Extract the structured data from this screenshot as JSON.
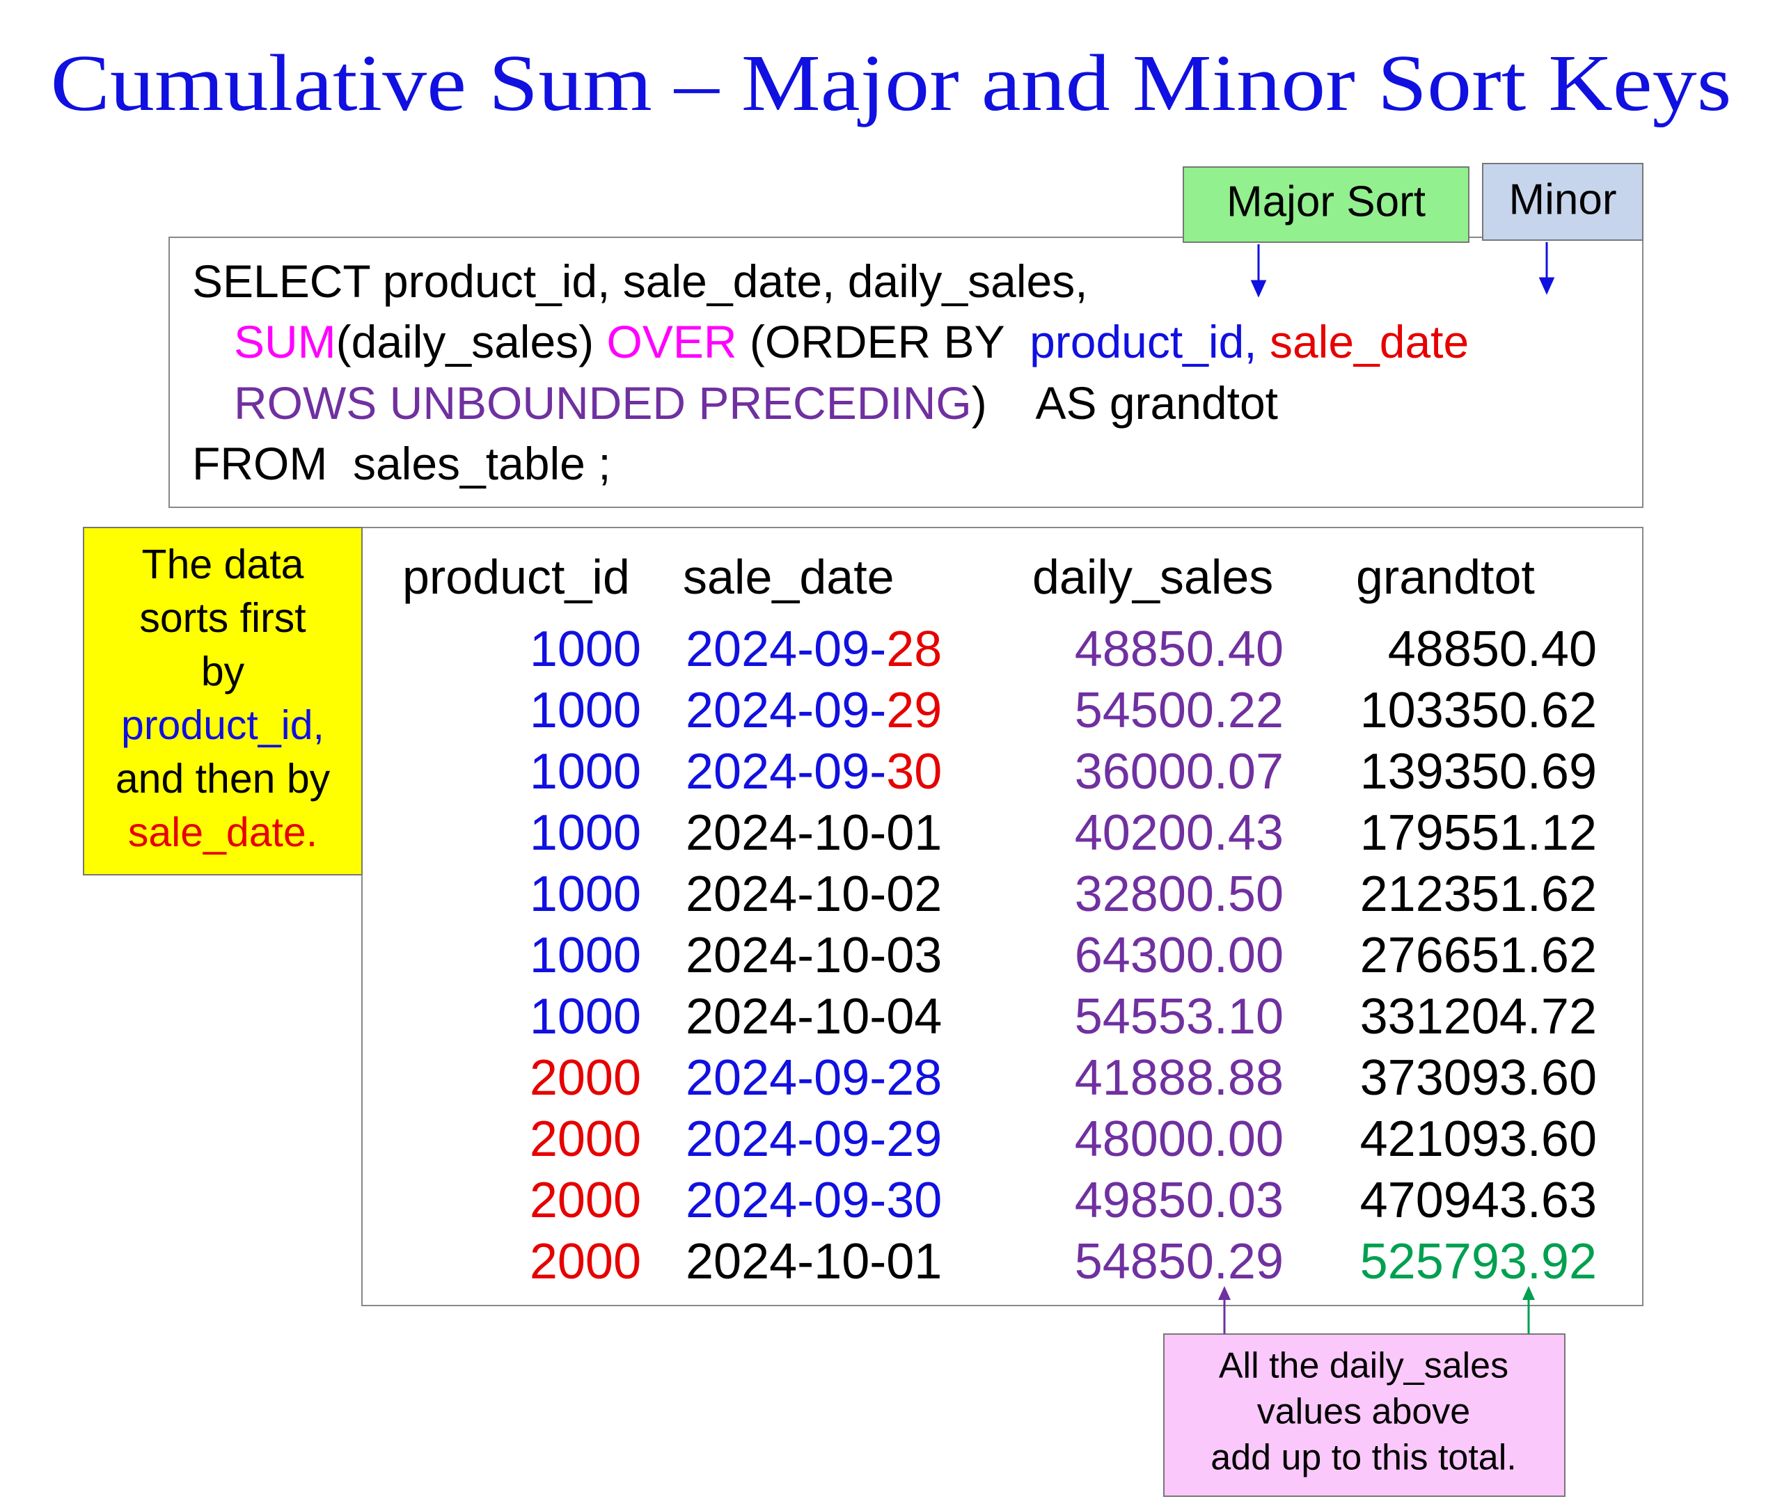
{
  "title": "Cumulative Sum – Major and Minor Sort Keys",
  "sort_labels": {
    "major": "Major Sort",
    "minor": "Minor"
  },
  "sql": {
    "lines": [
      [
        {
          "text": "SELECT product_id, sale_date, daily_sales,",
          "color": "#000000"
        }
      ],
      [
        {
          "text": "SUM",
          "color": "#ff00ff"
        },
        {
          "text": "(daily_sales) ",
          "color": "#000000"
        },
        {
          "text": "OVER",
          "color": "#ff00ff"
        },
        {
          "text": " (ORDER BY  ",
          "color": "#000000"
        },
        {
          "text": "product_id, ",
          "color": "#1010e0"
        },
        {
          "text": "sale_date",
          "color": "#e60000"
        }
      ],
      [
        {
          "text": "ROWS UNBOUNDED PRECEDING",
          "color": "#7030a0"
        },
        {
          "text": ")",
          "color": "#000000"
        },
        {
          "text": "    AS grandtot",
          "color": "#000000"
        }
      ],
      [
        {
          "text": "FROM  sales_table ;",
          "color": "#000000"
        }
      ]
    ]
  },
  "note": {
    "lines": [
      [
        {
          "text": "The data",
          "color": "#000000"
        }
      ],
      [
        {
          "text": "sorts first",
          "color": "#000000"
        }
      ],
      [
        {
          "text": "by",
          "color": "#000000"
        }
      ],
      [
        {
          "text": "product_id,",
          "color": "#1010e0"
        }
      ],
      [
        {
          "text": "and then by",
          "color": "#000000"
        }
      ],
      [
        {
          "text": "sale_date.",
          "color": "#e60000"
        }
      ]
    ]
  },
  "table": {
    "columns": [
      "product_id",
      "sale_date",
      "daily_sales",
      "grandtot"
    ],
    "rows": [
      [
        [
          {
            "text": "1000",
            "color": "#1010e0"
          }
        ],
        [
          {
            "text": "2024-09-",
            "color": "#1010e0"
          },
          {
            "text": "28",
            "color": "#e60000"
          }
        ],
        [
          {
            "text": "48850.40",
            "color": "#7030a0"
          }
        ],
        [
          {
            "text": "48850.40",
            "color": "#000000"
          }
        ]
      ],
      [
        [
          {
            "text": "1000",
            "color": "#1010e0"
          }
        ],
        [
          {
            "text": "2024-09-",
            "color": "#1010e0"
          },
          {
            "text": "29",
            "color": "#e60000"
          }
        ],
        [
          {
            "text": "54500.22",
            "color": "#7030a0"
          }
        ],
        [
          {
            "text": "103350.62",
            "color": "#000000"
          }
        ]
      ],
      [
        [
          {
            "text": "1000",
            "color": "#1010e0"
          }
        ],
        [
          {
            "text": "2024-09-",
            "color": "#1010e0"
          },
          {
            "text": "30",
            "color": "#e60000"
          }
        ],
        [
          {
            "text": "36000.07",
            "color": "#7030a0"
          }
        ],
        [
          {
            "text": "139350.69",
            "color": "#000000"
          }
        ]
      ],
      [
        [
          {
            "text": "1000",
            "color": "#1010e0"
          }
        ],
        [
          {
            "text": "2024-10-01",
            "color": "#000000"
          }
        ],
        [
          {
            "text": "40200.43",
            "color": "#7030a0"
          }
        ],
        [
          {
            "text": "179551.12",
            "color": "#000000"
          }
        ]
      ],
      [
        [
          {
            "text": "1000",
            "color": "#1010e0"
          }
        ],
        [
          {
            "text": "2024-10-02",
            "color": "#000000"
          }
        ],
        [
          {
            "text": "32800.50",
            "color": "#7030a0"
          }
        ],
        [
          {
            "text": "212351.62",
            "color": "#000000"
          }
        ]
      ],
      [
        [
          {
            "text": "1000",
            "color": "#1010e0"
          }
        ],
        [
          {
            "text": "2024-10-03",
            "color": "#000000"
          }
        ],
        [
          {
            "text": "64300.00",
            "color": "#7030a0"
          }
        ],
        [
          {
            "text": "276651.62",
            "color": "#000000"
          }
        ]
      ],
      [
        [
          {
            "text": "1000",
            "color": "#1010e0"
          }
        ],
        [
          {
            "text": "2024-10-04",
            "color": "#000000"
          }
        ],
        [
          {
            "text": "54553.10",
            "color": "#7030a0"
          }
        ],
        [
          {
            "text": "331204.72",
            "color": "#000000"
          }
        ]
      ],
      [
        [
          {
            "text": "2000",
            "color": "#e60000"
          }
        ],
        [
          {
            "text": "2024-09-28",
            "color": "#1010e0"
          }
        ],
        [
          {
            "text": "41888.88",
            "color": "#7030a0"
          }
        ],
        [
          {
            "text": "373093.60",
            "color": "#000000"
          }
        ]
      ],
      [
        [
          {
            "text": "2000",
            "color": "#e60000"
          }
        ],
        [
          {
            "text": "2024-09-29",
            "color": "#1010e0"
          }
        ],
        [
          {
            "text": "48000.00",
            "color": "#7030a0"
          }
        ],
        [
          {
            "text": "421093.60",
            "color": "#000000"
          }
        ]
      ],
      [
        [
          {
            "text": "2000",
            "color": "#e60000"
          }
        ],
        [
          {
            "text": "2024-09-30",
            "color": "#1010e0"
          }
        ],
        [
          {
            "text": "49850.03",
            "color": "#7030a0"
          }
        ],
        [
          {
            "text": "470943.63",
            "color": "#000000"
          }
        ]
      ],
      [
        [
          {
            "text": "2000",
            "color": "#e60000"
          }
        ],
        [
          {
            "text": "2024-10-01",
            "color": "#000000"
          }
        ],
        [
          {
            "text": "54850.29",
            "color": "#7030a0"
          }
        ],
        [
          {
            "text": "525793.92",
            "color": "#00a050"
          }
        ]
      ]
    ]
  },
  "callout": {
    "lines": [
      "All the daily_sales",
      "values above",
      "add up to this total."
    ]
  }
}
